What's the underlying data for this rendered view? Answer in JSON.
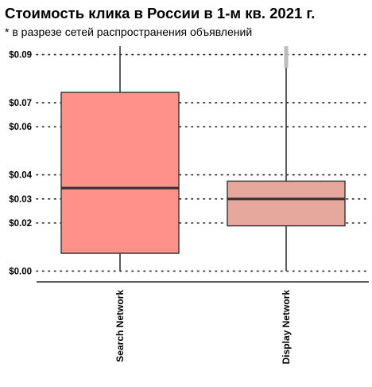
{
  "title": "Стоимость клика в России в 1-м кв. 2021 г.",
  "subtitle": "* в разрезе сетей распространения объявлений",
  "chart_data": {
    "type": "box",
    "title": "Стоимость клика в России в 1-м кв. 2021 г.",
    "subtitle": "* в разрезе сетей распространения объявлений",
    "xlabel": "",
    "ylabel": "",
    "categories": [
      "Search Network",
      "Display Network"
    ],
    "y_ticks": [
      0.0,
      0.02,
      0.03,
      0.04,
      0.06,
      0.07,
      0.09
    ],
    "y_tick_labels": [
      "$0.00",
      "$0.02",
      "$0.03",
      "$0.04",
      "$0.06",
      "$0.07",
      "$0.09"
    ],
    "ylim": [
      -0.0045,
      0.0935
    ],
    "grid": "horizontal dotted",
    "legend": "none",
    "boxes": [
      {
        "category": "Search Network",
        "whisker_low": 0.0,
        "q1": 0.0074,
        "median": 0.0345,
        "q3": 0.0743,
        "whisker_high": 0.0935,
        "color": "#ff918a"
      },
      {
        "category": "Display Network",
        "whisker_low": 0.0,
        "q1": 0.0188,
        "median": 0.03,
        "q3": 0.0374,
        "whisker_high": 0.0935,
        "outlier_range": [
          0.0845,
          0.0935
        ],
        "color": "#e6a89c"
      }
    ]
  }
}
